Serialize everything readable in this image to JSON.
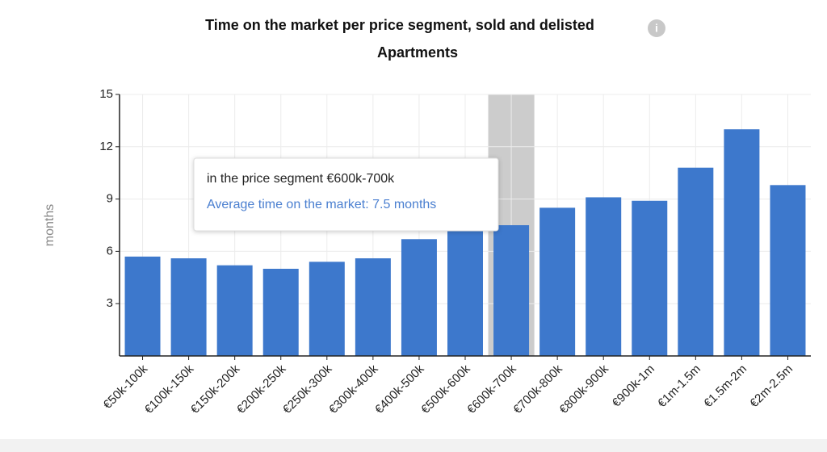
{
  "chart_data": {
    "type": "bar",
    "title": "Time on the market per price segment, sold and delisted",
    "subtitle": "Apartments",
    "y_label": "months",
    "categories": [
      "€50k-100k",
      "€100k-150k",
      "€150k-200k",
      "€200k-250k",
      "€250k-300k",
      "€300k-400k",
      "€400k-500k",
      "€500k-600k",
      "€600k-700k",
      "€700k-800k",
      "€800k-900k",
      "€900k-1m",
      "€1m-1.5m",
      "€1.5m-2m",
      "€2m-2.5m"
    ],
    "values": [
      5.7,
      5.6,
      5.2,
      5.0,
      5.4,
      5.6,
      6.7,
      7.3,
      7.5,
      8.5,
      9.1,
      8.9,
      10.8,
      13.0,
      9.8
    ],
    "color": "#3d78cc",
    "ylim": [
      0,
      15
    ],
    "yticks": [
      3,
      6,
      9,
      12,
      15
    ],
    "grid": true,
    "highlight": "€600k-700k",
    "tooltip": {
      "line1": "in the price segment €600k-700k",
      "line2": "Average time on the market: 7.5 months"
    }
  }
}
